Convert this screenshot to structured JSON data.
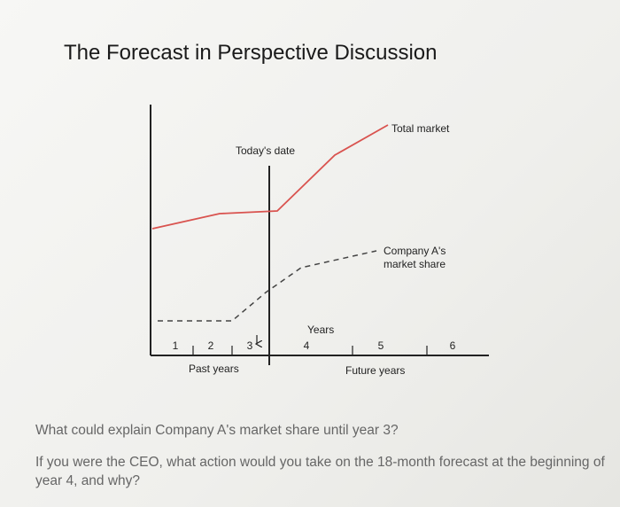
{
  "slide": {
    "title": "The Forecast in Perspective Discussion",
    "diagram": {
      "today_label": "Today's date",
      "total_market_label": "Total market",
      "company_share_label": [
        "Company A's",
        "market share"
      ],
      "years_label": "Years",
      "year_ticks": [
        "1",
        "2",
        "3",
        "4",
        "5",
        "6"
      ],
      "past_label": "Past years",
      "future_label": "Future years"
    },
    "questions": [
      "What could explain Company A's market share until year 3?",
      "If you were the CEO, what action would you take on the 18-month forecast at the beginning of year 4, and why?"
    ]
  }
}
